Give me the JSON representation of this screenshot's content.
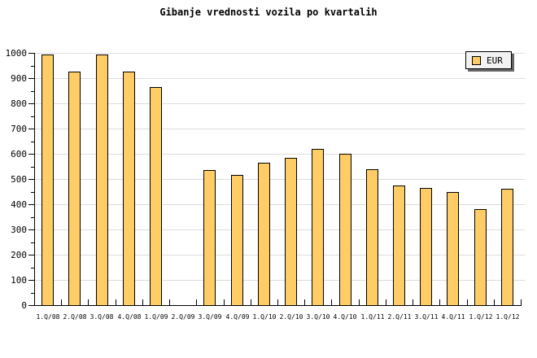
{
  "title": "Gibanje vrednosti vozila po kvartalih",
  "legend": {
    "label": "EUR"
  },
  "chart_data": {
    "type": "bar",
    "title": "Gibanje vrednosti vozila po kvartalih",
    "categories": [
      "1.Q/08",
      "2.Q/08",
      "3.Q/08",
      "4.Q/08",
      "1.Q/09",
      "2.Q/09",
      "3.Q/09",
      "4.Q/09",
      "1.Q/10",
      "2.Q/10",
      "3.Q/10",
      "4.Q/10",
      "1.Q/11",
      "2.Q/11",
      "3.Q/11",
      "4.Q/11",
      "1.Q/12",
      "1.Q/12"
    ],
    "series": [
      {
        "name": "EUR",
        "values": [
          995,
          925,
          995,
          925,
          865,
          null,
          535,
          515,
          565,
          585,
          620,
          600,
          540,
          475,
          465,
          450,
          380,
          460
        ]
      }
    ],
    "xlabel": "",
    "ylabel": "",
    "ylim": [
      0,
      1000
    ],
    "y_major_step": 100,
    "y_minor_step": 50,
    "y_tick_labels": [
      "0",
      "100",
      "200",
      "300",
      "400",
      "500",
      "600",
      "700",
      "800",
      "900",
      "1000"
    ],
    "grid": "horizontal-major",
    "legend_position": "top-right",
    "colors": {
      "bar_fill": "#FFCC66",
      "bar_border": "#000000",
      "grid": "#DCDCDC",
      "axis": "#000000",
      "text": "#000000",
      "legend_bg": "#F2F2F2",
      "legend_shadow": "#666666",
      "background": "#FFFFFF"
    }
  }
}
